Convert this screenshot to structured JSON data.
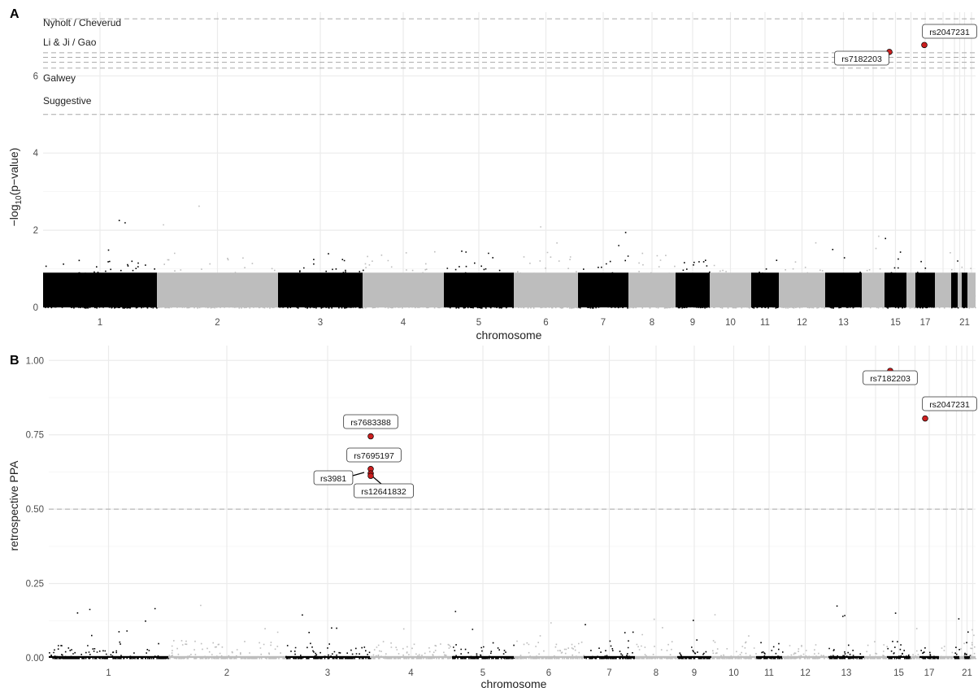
{
  "panels": [
    {
      "letter": "A",
      "ylabel_main": "−log",
      "ylabel_sub": "10",
      "ylabel_rest": "(p−value)",
      "xlabel": "chromosome",
      "ylim": [
        0,
        7.65
      ],
      "y_ticks": [
        0,
        2,
        4,
        6
      ],
      "y_tick_labels": [
        "0",
        "2",
        "4",
        "6"
      ],
      "threshold_labels": [
        "Nyholt / Cheverud",
        "Li & Ji / Gao",
        "Galwey",
        "Suggestive"
      ],
      "threshold_lines": [
        7.48,
        6.6,
        6.48,
        6.35,
        6.2,
        5.0
      ],
      "highlight_points": [
        {
          "chrom": 15,
          "value": 6.62,
          "label": "rs7182203"
        },
        {
          "chrom": 17,
          "value": 6.8,
          "label": "rs2047231"
        }
      ]
    },
    {
      "letter": "B",
      "ylabel": "retrospective PPA",
      "xlabel": "chromosome",
      "ylim": [
        0,
        1.0
      ],
      "y_ticks": [
        0,
        0.25,
        0.5,
        0.75,
        1.0
      ],
      "y_tick_labels": [
        "0.00",
        "0.25",
        "0.50",
        "0.75",
        "1.00"
      ],
      "threshold_lines": [
        0.5
      ],
      "highlight_points": [
        {
          "chrom": 15,
          "value": 0.965,
          "label": "rs7182203"
        },
        {
          "chrom": 17,
          "value": 0.805,
          "label": "rs2047231"
        },
        {
          "chrom": 3,
          "value": 0.745,
          "label": "rs7683388"
        },
        {
          "chrom": 3,
          "value": 0.635,
          "label": "rs7695197"
        },
        {
          "chrom": 3,
          "value": 0.62,
          "label": "rs3981"
        },
        {
          "chrom": 3,
          "value": 0.612,
          "label": "rs12641832"
        }
      ]
    }
  ],
  "chart_data": [
    {
      "type": "scatter",
      "subtype": "manhattan",
      "xlabel": "chromosome",
      "ylabel": "−log10(p−value)",
      "ylim": [
        0,
        7.65
      ],
      "chromosomes": [
        1,
        2,
        3,
        4,
        5,
        6,
        7,
        8,
        9,
        10,
        11,
        12,
        13,
        14,
        15,
        16,
        17,
        18,
        19,
        20,
        21,
        22
      ],
      "x_tick_labels": [
        "1",
        "2",
        "3",
        "4",
        "5",
        "6",
        "7",
        "8",
        "9",
        "10",
        "11",
        "12",
        "13",
        "15",
        "17",
        "21"
      ],
      "color_alternation": [
        "#000000",
        "#bdbdbd"
      ],
      "thresholds": [
        {
          "label": "Nyholt / Cheverud",
          "value": 7.48
        },
        {
          "label": "Li & Ji / Gao",
          "value": 6.6
        },
        {
          "label": "Galwey",
          "value": 6.2
        },
        {
          "label": "Suggestive",
          "value": 5.0
        }
      ],
      "highlight": [
        {
          "snp": "rs7182203",
          "chrom": 15,
          "value": 6.62
        },
        {
          "snp": "rs2047231",
          "chrom": 17,
          "value": 6.8
        }
      ],
      "grid": true
    },
    {
      "type": "scatter",
      "subtype": "manhattan",
      "xlabel": "chromosome",
      "ylabel": "retrospective PPA",
      "ylim": [
        0,
        1.0
      ],
      "x_tick_labels": [
        "1",
        "2",
        "3",
        "4",
        "5",
        "6",
        "7",
        "8",
        "9",
        "10",
        "11",
        "12",
        "13",
        "15",
        "17",
        "21"
      ],
      "threshold": 0.5,
      "highlight": [
        {
          "snp": "rs7182203",
          "chrom": 15,
          "value": 0.965
        },
        {
          "snp": "rs2047231",
          "chrom": 17,
          "value": 0.805
        },
        {
          "snp": "rs7683388",
          "chrom": 3,
          "value": 0.745
        },
        {
          "snp": "rs7695197",
          "chrom": 3,
          "value": 0.635
        },
        {
          "snp": "rs3981",
          "chrom": 3,
          "value": 0.62
        },
        {
          "snp": "rs12641832",
          "chrom": 3,
          "value": 0.612
        }
      ],
      "grid": true
    }
  ]
}
